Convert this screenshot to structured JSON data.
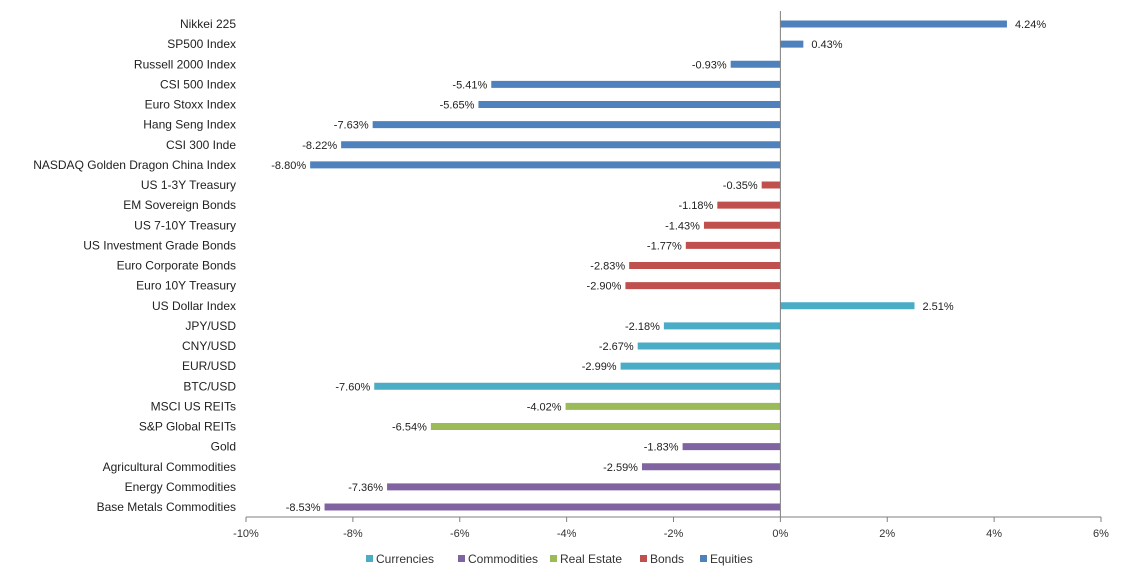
{
  "chart_data": {
    "type": "bar",
    "orientation": "horizontal",
    "title": "",
    "xlabel": "",
    "ylabel": "",
    "xlim": [
      -10,
      6
    ],
    "grid": false,
    "legend_position": "bottom",
    "x_ticks": [
      -10,
      -8,
      -6,
      -4,
      -2,
      0,
      2,
      4,
      6
    ],
    "x_tick_labels": [
      "-10%",
      "-8%",
      "-6%",
      "-4%",
      "-2%",
      "0%",
      "2%",
      "4%",
      "6%"
    ],
    "legend": [
      {
        "name": "Currencies",
        "color": "#4bacc6"
      },
      {
        "name": "Commodities",
        "color": "#8064a2"
      },
      {
        "name": "Real Estate",
        "color": "#9bbb59"
      },
      {
        "name": "Bonds",
        "color": "#c0504d"
      },
      {
        "name": "Equities",
        "color": "#4f81bd"
      }
    ],
    "bars": [
      {
        "category": "Nikkei 225",
        "value": 4.24,
        "label": "4.24%",
        "series": "Equities"
      },
      {
        "category": "SP500 Index",
        "value": 0.43,
        "label": "0.43%",
        "series": "Equities"
      },
      {
        "category": "Russell 2000 Index",
        "value": -0.93,
        "label": "-0.93%",
        "series": "Equities"
      },
      {
        "category": "CSI 500 Index",
        "value": -5.41,
        "label": "-5.41%",
        "series": "Equities"
      },
      {
        "category": "Euro Stoxx Index",
        "value": -5.65,
        "label": "-5.65%",
        "series": "Equities"
      },
      {
        "category": "Hang Seng Index",
        "value": -7.63,
        "label": "-7.63%",
        "series": "Equities"
      },
      {
        "category": "CSI 300 Inde",
        "value": -8.22,
        "label": "-8.22%",
        "series": "Equities"
      },
      {
        "category": "NASDAQ Golden Dragon China Index",
        "value": -8.8,
        "label": "-8.80%",
        "series": "Equities"
      },
      {
        "category": "US 1-3Y Treasury",
        "value": -0.35,
        "label": "-0.35%",
        "series": "Bonds"
      },
      {
        "category": "EM Sovereign Bonds",
        "value": -1.18,
        "label": "-1.18%",
        "series": "Bonds"
      },
      {
        "category": "US 7-10Y Treasury",
        "value": -1.43,
        "label": "-1.43%",
        "series": "Bonds"
      },
      {
        "category": "US Investment Grade Bonds",
        "value": -1.77,
        "label": "-1.77%",
        "series": "Bonds"
      },
      {
        "category": "Euro Corporate Bonds",
        "value": -2.83,
        "label": "-2.83%",
        "series": "Bonds"
      },
      {
        "category": "Euro 10Y Treasury",
        "value": -2.9,
        "label": "-2.90%",
        "series": "Bonds"
      },
      {
        "category": "US Dollar Index",
        "value": 2.51,
        "label": "2.51%",
        "series": "Currencies"
      },
      {
        "category": "JPY/USD",
        "value": -2.18,
        "label": "-2.18%",
        "series": "Currencies"
      },
      {
        "category": "CNY/USD",
        "value": -2.67,
        "label": "-2.67%",
        "series": "Currencies"
      },
      {
        "category": "EUR/USD",
        "value": -2.99,
        "label": "-2.99%",
        "series": "Currencies"
      },
      {
        "category": "BTC/USD",
        "value": -7.6,
        "label": "-7.60%",
        "series": "Currencies"
      },
      {
        "category": "MSCI US REITs",
        "value": -4.02,
        "label": "-4.02%",
        "series": "Real Estate"
      },
      {
        "category": "S&P Global REITs",
        "value": -6.54,
        "label": "-6.54%",
        "series": "Real Estate"
      },
      {
        "category": "Gold",
        "value": -1.83,
        "label": "-1.83%",
        "series": "Commodities"
      },
      {
        "category": "Agricultural Commodities",
        "value": -2.59,
        "label": "-2.59%",
        "series": "Commodities"
      },
      {
        "category": "Energy Commodities",
        "value": -7.36,
        "label": "-7.36%",
        "series": "Commodities"
      },
      {
        "category": "Base Metals Commodities",
        "value": -8.53,
        "label": "-8.53%",
        "series": "Commodities"
      }
    ]
  }
}
